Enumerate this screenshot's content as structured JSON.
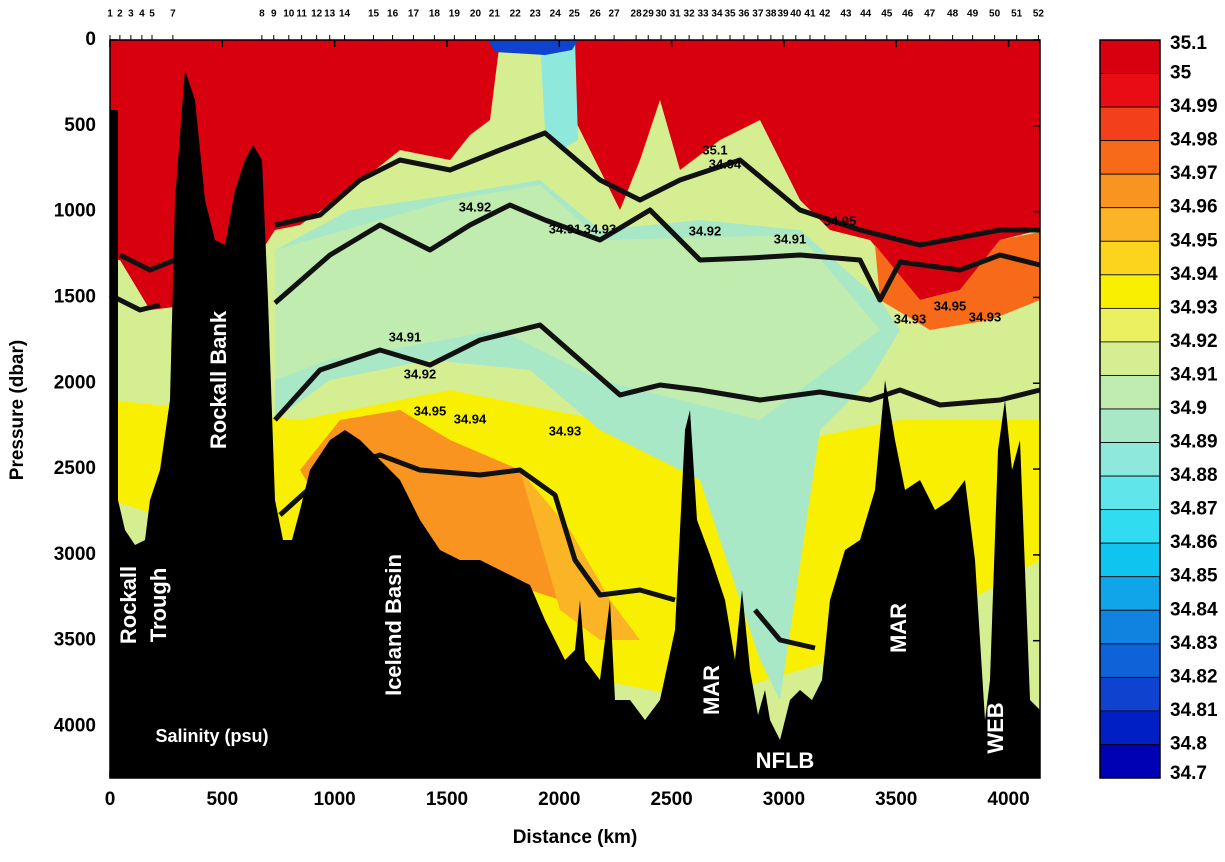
{
  "chart_data": {
    "type": "contour",
    "xlabel": "Distance (km)",
    "ylabel": "Pressure (dbar)",
    "xlim": [
      0,
      4140
    ],
    "ylim": [
      0,
      4300
    ],
    "y_reversed": true,
    "xticks": [
      0,
      500,
      1000,
      1500,
      2000,
      2500,
      3000,
      3500,
      4000
    ],
    "yticks": [
      0,
      500,
      1000,
      1500,
      2000,
      2500,
      3000,
      3500,
      4000
    ],
    "stations": {
      "labels": [
        "1",
        "2",
        "3",
        "4",
        "5",
        "7",
        "8",
        "9",
        "10",
        "11",
        "12",
        "13",
        "14",
        "15",
        "16",
        "17",
        "18",
        "19",
        "20",
        "21",
        "22",
        "23",
        "24",
        "25",
        "26",
        "27",
        "28",
        "29",
        "30",
        "31",
        "32",
        "33",
        "34",
        "35",
        "36",
        "37",
        "38",
        "39",
        "40",
        "41",
        "42",
        "43",
        "44",
        "45",
        "46",
        "47",
        "48",
        "49",
        "50",
        "51",
        "52"
      ],
      "x": [
        0,
        44,
        93,
        142,
        187,
        280,
        676,
        729,
        796,
        853,
        920,
        978,
        1044,
        1173,
        1258,
        1351,
        1444,
        1533,
        1627,
        1711,
        1804,
        1893,
        1982,
        2067,
        2160,
        2244,
        2342,
        2396,
        2453,
        2516,
        2578,
        2640,
        2702,
        2760,
        2822,
        2884,
        2942,
        2996,
        3053,
        3116,
        3182,
        3276,
        3364,
        3458,
        3551,
        3649,
        3751,
        3840,
        3938,
        4036,
        4133
      ]
    },
    "colorbar": {
      "levels": [
        35.1,
        35,
        34.99,
        34.98,
        34.97,
        34.96,
        34.95,
        34.94,
        34.93,
        34.92,
        34.91,
        34.9,
        34.89,
        34.88,
        34.87,
        34.86,
        34.85,
        34.84,
        34.83,
        34.82,
        34.81,
        34.8,
        34.7
      ],
      "colors": [
        "#d8000f",
        "#ea0c14",
        "#f4401a",
        "#f76a1a",
        "#f99420",
        "#fbb425",
        "#fcd41e",
        "#f8f000",
        "#eaf060",
        "#d6ee92",
        "#c0ecb0",
        "#a8e8c6",
        "#8ee8dc",
        "#60e6ea",
        "#30dcf2",
        "#10c4f0",
        "#10a4e8",
        "#1082e0",
        "#1062d8",
        "#1042d0",
        "#0020c6",
        "#0000b4"
      ]
    },
    "annotations": [
      "Rockall",
      "Trough",
      "Rockall Bank",
      "Iceland Basin",
      "MAR",
      "NFLB",
      "MAR",
      "WEB",
      "Salinity (psu)"
    ],
    "contour_labels": [
      "34.92",
      "34.91",
      "34.92",
      "34.91",
      "34.92",
      "34.95",
      "34.94",
      "34.93",
      "35.1",
      "34.94",
      "34.93",
      "34.95",
      "34.91",
      "34.93",
      "34.95",
      "34.93"
    ]
  }
}
